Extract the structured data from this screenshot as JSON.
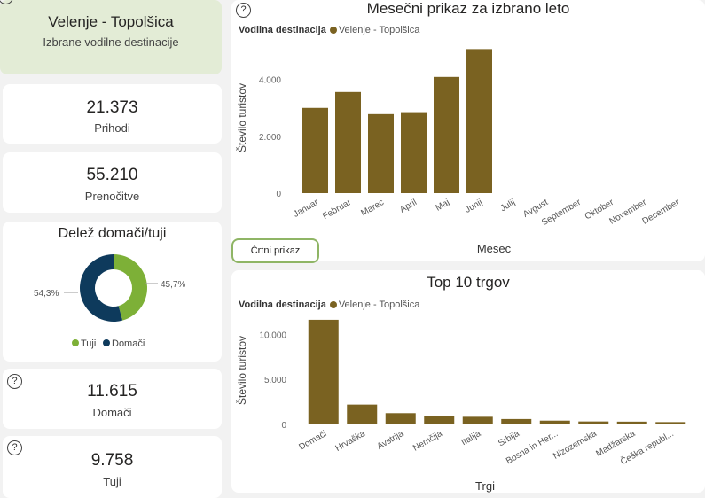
{
  "colors": {
    "bar": "#7a6221",
    "tuji": "#7db037",
    "domaci": "#0e3a5c",
    "accent_panel": "#e3ecd6"
  },
  "icons": {
    "help": "question-circle-icon"
  },
  "destination_card": {
    "help_glyph": "?",
    "title": "Velenje - Topolšica",
    "subtitle": "Izbrane vodilne destinacije"
  },
  "kpis": {
    "prihodi": {
      "value": "21.373",
      "label": "Prihodi"
    },
    "prenocitve": {
      "value": "55.210",
      "label": "Prenočitve"
    },
    "domaci": {
      "help_glyph": "?",
      "value": "11.615",
      "label": "Domači"
    },
    "tuji": {
      "help_glyph": "?",
      "value": "9.758",
      "label": "Tuji"
    }
  },
  "donut": {
    "title": "Delež domači/tuji",
    "label_tuji": "45,7%",
    "label_domaci": "54,3%",
    "legend_tuji": "Tuji",
    "legend_domaci": "Domači",
    "chart_data": {
      "type": "pie",
      "categories": [
        "Tuji",
        "Domači"
      ],
      "values": [
        45.7,
        54.3
      ]
    }
  },
  "monthly": {
    "help_glyph": "?",
    "title": "Mesečni prikaz za izbrano leto",
    "legend_title": "Vodilna destinacija",
    "legend_item": "Velenje - Topolšica",
    "ylabel": "Število turistov",
    "xlabel": "Mesec",
    "yticks": [
      "0",
      "2.000",
      "4.000"
    ],
    "button_label": "Črtni prikaz",
    "chart_data": {
      "type": "bar",
      "categories": [
        "Januar",
        "Februar",
        "Marec",
        "April",
        "Maj",
        "Junij",
        "Julij",
        "Avgust",
        "September",
        "Oktober",
        "November",
        "December"
      ],
      "series": [
        {
          "name": "Velenje - Topolšica",
          "values": [
            3000,
            3560,
            2780,
            2850,
            4090,
            5070,
            null,
            null,
            null,
            null,
            null,
            null
          ]
        }
      ],
      "ylim": [
        0,
        5300
      ],
      "ytick_values": [
        0,
        2000,
        4000
      ],
      "xlabel": "Mesec",
      "ylabel": "Število turistov"
    }
  },
  "top10": {
    "title": "Top 10 trgov",
    "legend_title": "Vodilna destinacija",
    "legend_item": "Velenje - Topolšica",
    "ylabel": "Število turistov",
    "xlabel": "Trgi",
    "yticks": [
      "0",
      "5.000",
      "10.000"
    ],
    "chart_data": {
      "type": "bar",
      "categories": [
        "Domači",
        "Hrvaška",
        "Avstrija",
        "Nemčija",
        "Italija",
        "Srbija",
        "Bosna in Her...",
        "Nizozemska",
        "Madžarska",
        "Češka republ..."
      ],
      "series": [
        {
          "name": "Velenje - Topolšica",
          "values": [
            11615,
            2200,
            1250,
            950,
            850,
            600,
            420,
            330,
            310,
            260
          ]
        }
      ],
      "ylim": [
        0,
        12000
      ],
      "ytick_values": [
        0,
        5000,
        10000
      ],
      "xlabel": "Trgi",
      "ylabel": "Število turistov"
    }
  }
}
